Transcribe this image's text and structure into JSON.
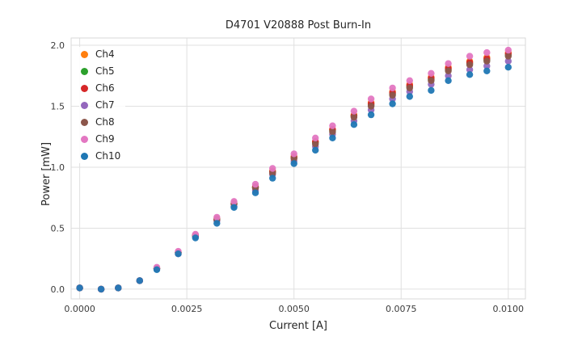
{
  "chart_data": {
    "type": "scatter",
    "title": "D4701 V20888 Post Burn-In",
    "xlabel": "Current [A]",
    "ylabel": "Power [mW]",
    "xlim": [
      -0.0002,
      0.0104
    ],
    "ylim": [
      -0.08,
      2.06
    ],
    "xticks": [
      0.0,
      0.0025,
      0.005,
      0.0075,
      0.01
    ],
    "xtick_labels": [
      "0.0000",
      "0.0025",
      "0.0050",
      "0.0075",
      "0.0100"
    ],
    "yticks": [
      0.0,
      0.5,
      1.0,
      1.5,
      2.0
    ],
    "ytick_labels": [
      "0.0",
      "0.5",
      "1.0",
      "1.5",
      "2.0"
    ],
    "grid": true,
    "legend_position": "upper left",
    "grid_color": "#e0e0e0",
    "frame_color": "#d9d9d9",
    "x": [
      0.0,
      0.0005,
      0.0009,
      0.0014,
      0.0018,
      0.0023,
      0.0027,
      0.0032,
      0.0036,
      0.0041,
      0.0045,
      0.005,
      0.0055,
      0.0059,
      0.0064,
      0.0068,
      0.0073,
      0.0077,
      0.0082,
      0.0086,
      0.0091,
      0.0095,
      0.01
    ],
    "series": [
      {
        "name": "Ch4",
        "color": "#ff7f0e",
        "values": [
          0.01,
          0.0,
          0.01,
          0.07,
          0.17,
          0.3,
          0.44,
          0.58,
          0.71,
          0.84,
          0.97,
          1.09,
          1.21,
          1.31,
          1.43,
          1.53,
          1.62,
          1.68,
          1.74,
          1.82,
          1.87,
          1.9,
          1.94
        ]
      },
      {
        "name": "Ch5",
        "color": "#2ca02c",
        "values": [
          0.01,
          0.0,
          0.01,
          0.07,
          0.17,
          0.3,
          0.44,
          0.57,
          0.7,
          0.83,
          0.96,
          1.08,
          1.2,
          1.3,
          1.42,
          1.51,
          1.6,
          1.66,
          1.72,
          1.8,
          1.85,
          1.88,
          1.92
        ]
      },
      {
        "name": "Ch6",
        "color": "#d62728",
        "values": [
          0.01,
          0.0,
          0.01,
          0.07,
          0.17,
          0.3,
          0.44,
          0.57,
          0.7,
          0.84,
          0.96,
          1.08,
          1.21,
          1.31,
          1.42,
          1.52,
          1.61,
          1.67,
          1.73,
          1.81,
          1.86,
          1.89,
          1.93
        ]
      },
      {
        "name": "Ch7",
        "color": "#9467bd",
        "values": [
          0.01,
          0.0,
          0.01,
          0.07,
          0.17,
          0.29,
          0.43,
          0.56,
          0.68,
          0.81,
          0.94,
          1.05,
          1.17,
          1.27,
          1.38,
          1.47,
          1.56,
          1.62,
          1.68,
          1.75,
          1.8,
          1.83,
          1.87
        ]
      },
      {
        "name": "Ch8",
        "color": "#8c564b",
        "values": [
          0.01,
          0.0,
          0.01,
          0.07,
          0.17,
          0.3,
          0.44,
          0.57,
          0.7,
          0.83,
          0.95,
          1.07,
          1.19,
          1.29,
          1.41,
          1.5,
          1.59,
          1.65,
          1.71,
          1.79,
          1.84,
          1.87,
          1.91
        ]
      },
      {
        "name": "Ch9",
        "color": "#e377c2",
        "values": [
          0.01,
          0.0,
          0.01,
          0.07,
          0.18,
          0.31,
          0.45,
          0.59,
          0.72,
          0.86,
          0.99,
          1.11,
          1.24,
          1.34,
          1.46,
          1.56,
          1.65,
          1.71,
          1.77,
          1.85,
          1.91,
          1.94,
          1.96
        ]
      },
      {
        "name": "Ch10",
        "color": "#1f77b4",
        "values": [
          0.01,
          0.0,
          0.01,
          0.07,
          0.16,
          0.29,
          0.42,
          0.54,
          0.67,
          0.79,
          0.91,
          1.03,
          1.14,
          1.24,
          1.35,
          1.43,
          1.52,
          1.58,
          1.63,
          1.71,
          1.76,
          1.79,
          1.82
        ]
      }
    ]
  }
}
